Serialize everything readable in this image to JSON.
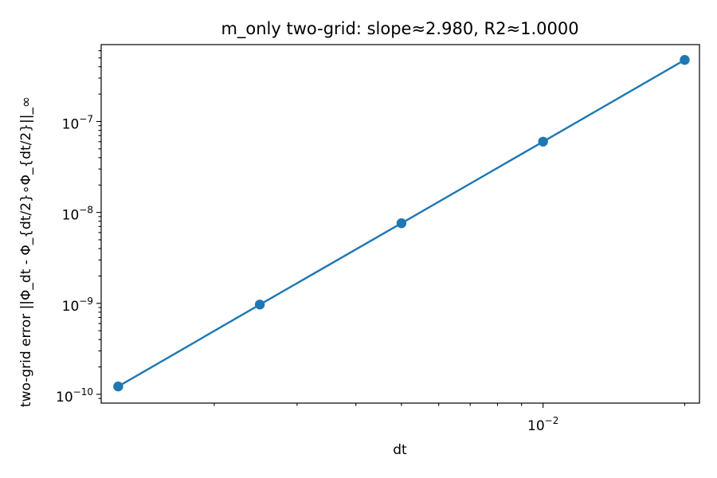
{
  "chart_data": {
    "type": "line",
    "title": "m_only two-grid: slope≈2.980, R2≈1.0000",
    "xlabel": "dt",
    "ylabel": "two-grid error ||Φ_dt - Φ_{dt/2}∘Φ_{dt/2}||_∞",
    "xscale": "log",
    "yscale": "log",
    "xlim": [
      0.00115,
      0.0215
    ],
    "ylim": [
      8e-11,
      7e-07
    ],
    "grid": false,
    "legend": "none",
    "series": [
      {
        "color": "#1f77b4",
        "marker": "circle",
        "x": [
          0.00125,
          0.0025,
          0.005,
          0.01,
          0.02
        ],
        "y": [
          1.22e-10,
          9.7e-10,
          7.6e-09,
          6e-08,
          4.75e-07
        ]
      }
    ],
    "xticks": [
      {
        "value": 0.01,
        "base": "10",
        "exp": "−2"
      }
    ],
    "yticks": [
      {
        "value": 1e-10,
        "base": "10",
        "exp": "−10"
      },
      {
        "value": 1e-09,
        "base": "10",
        "exp": "−9"
      },
      {
        "value": 1e-08,
        "base": "10",
        "exp": "−8"
      },
      {
        "value": 1e-07,
        "base": "10",
        "exp": "−7"
      }
    ]
  }
}
